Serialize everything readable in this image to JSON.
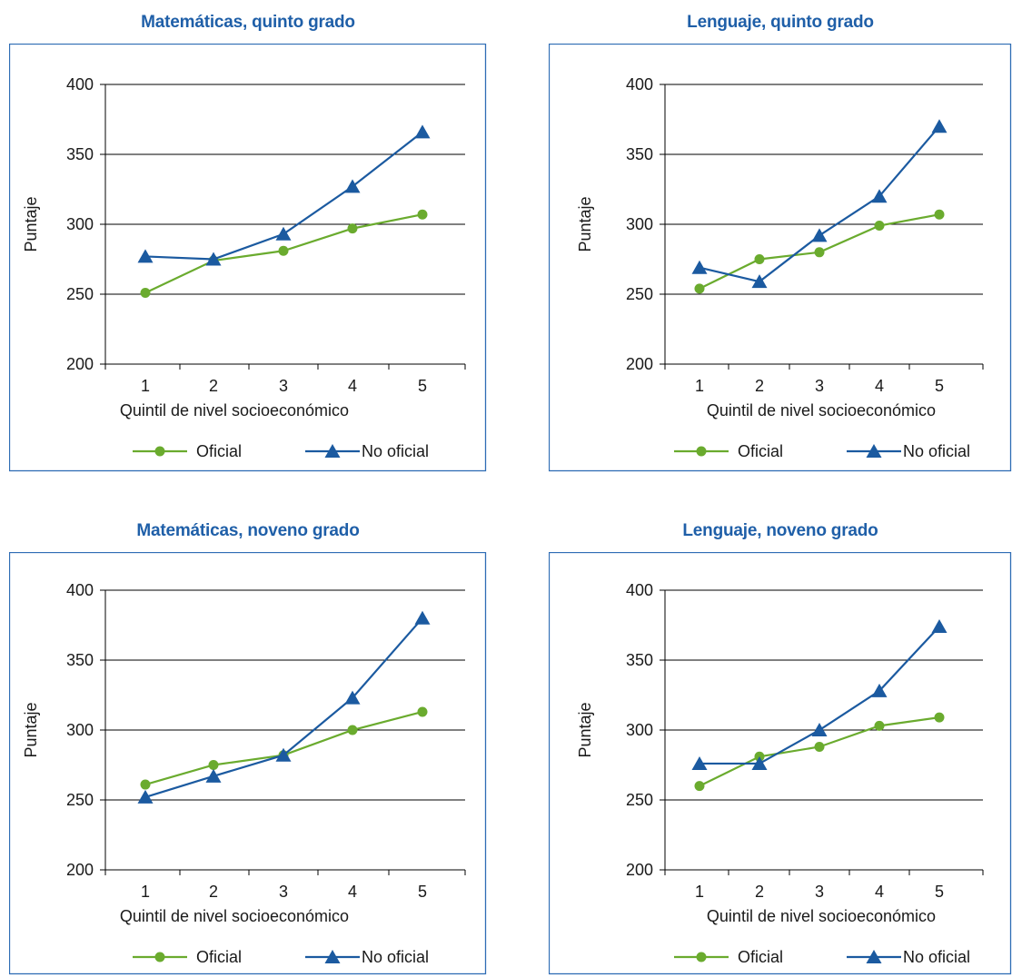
{
  "chart_data": [
    {
      "type": "line",
      "title": "Matemáticas, quinto grado",
      "xlabel": "Quintil de  nivel socioeconómico",
      "ylabel": "Puntaje",
      "categories": [
        "1",
        "2",
        "3",
        "4",
        "5"
      ],
      "ylim": [
        200,
        400
      ],
      "yticks": [
        "200",
        "250",
        "300",
        "350",
        "400"
      ],
      "grid": true,
      "legend": "bottom",
      "series": [
        {
          "name": "Oficial",
          "values": [
            251,
            274,
            281,
            297,
            307
          ]
        },
        {
          "name": "No oficial",
          "values": [
            277,
            275,
            293,
            327,
            366
          ]
        }
      ]
    },
    {
      "type": "line",
      "title": "Lenguaje, quinto grado",
      "xlabel": "Quintil de  nivel socioeconómico",
      "ylabel": "Puntaje",
      "categories": [
        "1",
        "2",
        "3",
        "4",
        "5"
      ],
      "ylim": [
        200,
        400
      ],
      "yticks": [
        "200",
        "250",
        "300",
        "350",
        "400"
      ],
      "grid": true,
      "legend": "bottom",
      "series": [
        {
          "name": "Oficial",
          "values": [
            254,
            275,
            280,
            299,
            307
          ]
        },
        {
          "name": "No oficial",
          "values": [
            269,
            259,
            292,
            320,
            370
          ]
        }
      ]
    },
    {
      "type": "line",
      "title": "Matemáticas, noveno grado",
      "xlabel": "Quintil de  nivel socioeconómico",
      "ylabel": "Puntaje",
      "categories": [
        "1",
        "2",
        "3",
        "4",
        "5"
      ],
      "ylim": [
        200,
        400
      ],
      "yticks": [
        "200",
        "250",
        "300",
        "350",
        "400"
      ],
      "grid": true,
      "legend": "bottom",
      "series": [
        {
          "name": "Oficial",
          "values": [
            261,
            275,
            282,
            300,
            313
          ]
        },
        {
          "name": "No oficial",
          "values": [
            252,
            267,
            282,
            323,
            380
          ]
        }
      ]
    },
    {
      "type": "line",
      "title": "Lenguaje, noveno grado",
      "xlabel": "Quintil de  nivel socioeconómico",
      "ylabel": "Puntaje",
      "categories": [
        "1",
        "2",
        "3",
        "4",
        "5"
      ],
      "ylim": [
        200,
        400
      ],
      "yticks": [
        "200",
        "250",
        "300",
        "350",
        "400"
      ],
      "grid": true,
      "legend": "bottom",
      "series": [
        {
          "name": "Oficial",
          "values": [
            260,
            281,
            288,
            303,
            309
          ]
        },
        {
          "name": "No oficial",
          "values": [
            276,
            276,
            300,
            328,
            374
          ]
        }
      ]
    }
  ],
  "colors": {
    "title": "#1f5fa8",
    "frame": "#2f6db5",
    "oficial": "#6aab2e",
    "no_oficial": "#1b5aa0",
    "grid": "#000000",
    "text": "#1a1a1a"
  }
}
